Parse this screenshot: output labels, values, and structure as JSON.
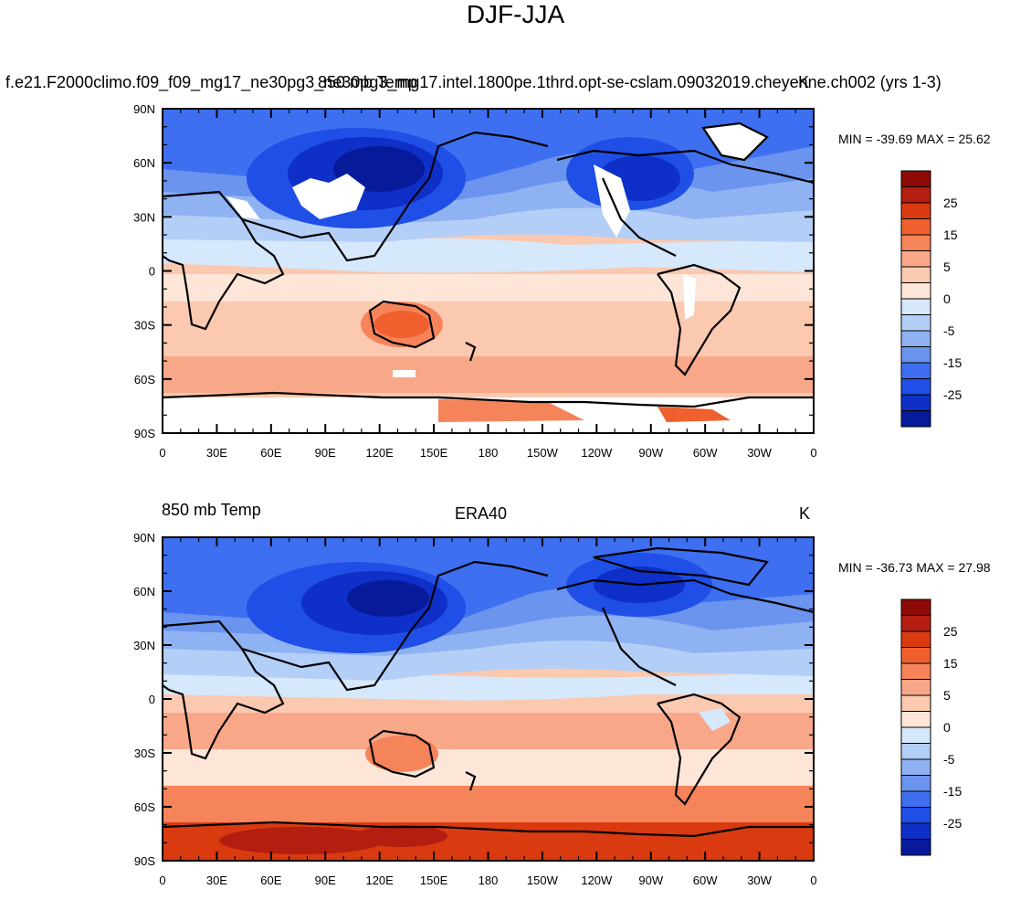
{
  "title": "DJF-JJA",
  "lat_labels": [
    "90N",
    "60N",
    "30N",
    "0",
    "30S",
    "60S",
    "90S"
  ],
  "lon_labels": [
    "0",
    "30E",
    "60E",
    "90E",
    "120E",
    "150E",
    "180",
    "150W",
    "120W",
    "90W",
    "60W",
    "30W",
    "0"
  ],
  "colorbar": {
    "labels": [
      "25",
      "15",
      "5",
      "0",
      "-5",
      "-15",
      "-25"
    ],
    "colors": [
      "#8e0a06",
      "#b31e10",
      "#da3a10",
      "#f0602e",
      "#f5845a",
      "#f8a888",
      "#fbc8b0",
      "#fde6d8",
      "#d6e8fb",
      "#b4cff7",
      "#8fb2f3",
      "#6a94ee",
      "#3e6ff0",
      "#1f4fe6",
      "#0e30c8",
      "#061a9a"
    ]
  },
  "panels": [
    {
      "id": "model",
      "left_text": "",
      "center_text": "f.e21.F2000climo.f09_f09_mg17_ne30pg3_ne30pg3_mg17.intel.1800pe.1thrd.opt-se-cslam.09032019.cheyenne.ch002 (yrs 1-3)",
      "overlap_text": "850 mb Temp",
      "right_text": "K",
      "min_max": "MIN = -39.69 MAX =  25.62"
    },
    {
      "id": "era40",
      "left_text": "850 mb Temp",
      "center_text": "ERA40",
      "right_text": "K",
      "min_max": "MIN = -36.73 MAX =  27.98"
    }
  ]
}
